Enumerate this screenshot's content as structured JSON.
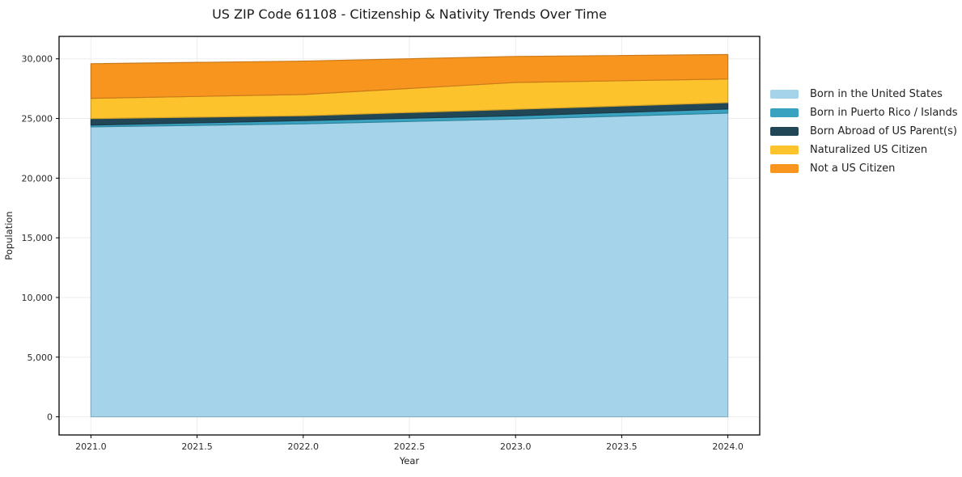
{
  "title": "US ZIP Code 61108 - Citizenship & Nativity Trends Over Time",
  "axes": {
    "xlabel": "Year",
    "ylabel": "Population",
    "x_tick_labels": [
      "2021.0",
      "2021.5",
      "2022.0",
      "2022.5",
      "2023.0",
      "2023.5",
      "2024.0"
    ],
    "y_tick_labels": [
      "0",
      "5,000",
      "10,000",
      "15,000",
      "20,000",
      "25,000",
      "30,000"
    ]
  },
  "legend": {
    "position": "right",
    "items": [
      {
        "label": "Born in the United States",
        "color": "#a5d3ea"
      },
      {
        "label": "Born in Puerto Rico / Islands",
        "color": "#39a2c0"
      },
      {
        "label": "Born Abroad of US Parent(s)",
        "color": "#214656"
      },
      {
        "label": "Naturalized US Citizen",
        "color": "#fcc32d"
      },
      {
        "label": "Not a US Citizen",
        "color": "#f8951f"
      }
    ]
  },
  "chart_data": {
    "type": "area",
    "stacked": true,
    "title": "US ZIP Code 61108 - Citizenship & Nativity Trends Over Time",
    "xlabel": "Year",
    "ylabel": "Population",
    "x": [
      2021,
      2022,
      2023,
      2024
    ],
    "series": [
      {
        "name": "Born in the United States",
        "color": "#a5d3ea",
        "values": [
          24300,
          24550,
          24950,
          25450
        ]
      },
      {
        "name": "Born in Puerto Rico / Islands",
        "color": "#39a2c0",
        "values": [
          150,
          270,
          270,
          350
        ]
      },
      {
        "name": "Born Abroad of US Parent(s)",
        "color": "#214656",
        "values": [
          540,
          410,
          550,
          530
        ]
      },
      {
        "name": "Naturalized US Citizen",
        "color": "#fcc32d",
        "values": [
          1700,
          1780,
          2250,
          1980
        ]
      },
      {
        "name": "Not a US Citizen",
        "color": "#f8951f",
        "values": [
          2900,
          2800,
          2180,
          2050
        ]
      }
    ],
    "totals_by_year": [
      29590,
      29810,
      30200,
      30360
    ],
    "x_ticks": [
      2021.0,
      2021.5,
      2022.0,
      2022.5,
      2023.0,
      2023.5,
      2024.0
    ],
    "y_ticks": [
      0,
      5000,
      10000,
      15000,
      20000,
      25000,
      30000
    ],
    "xlim": [
      2020.85,
      2024.15
    ],
    "ylim": [
      -1520,
      31880
    ],
    "grid": true,
    "legend_position": "right",
    "grid_color": "#ededed",
    "frame_color": "#000000",
    "tick_label_color": "#2b2b2b"
  }
}
